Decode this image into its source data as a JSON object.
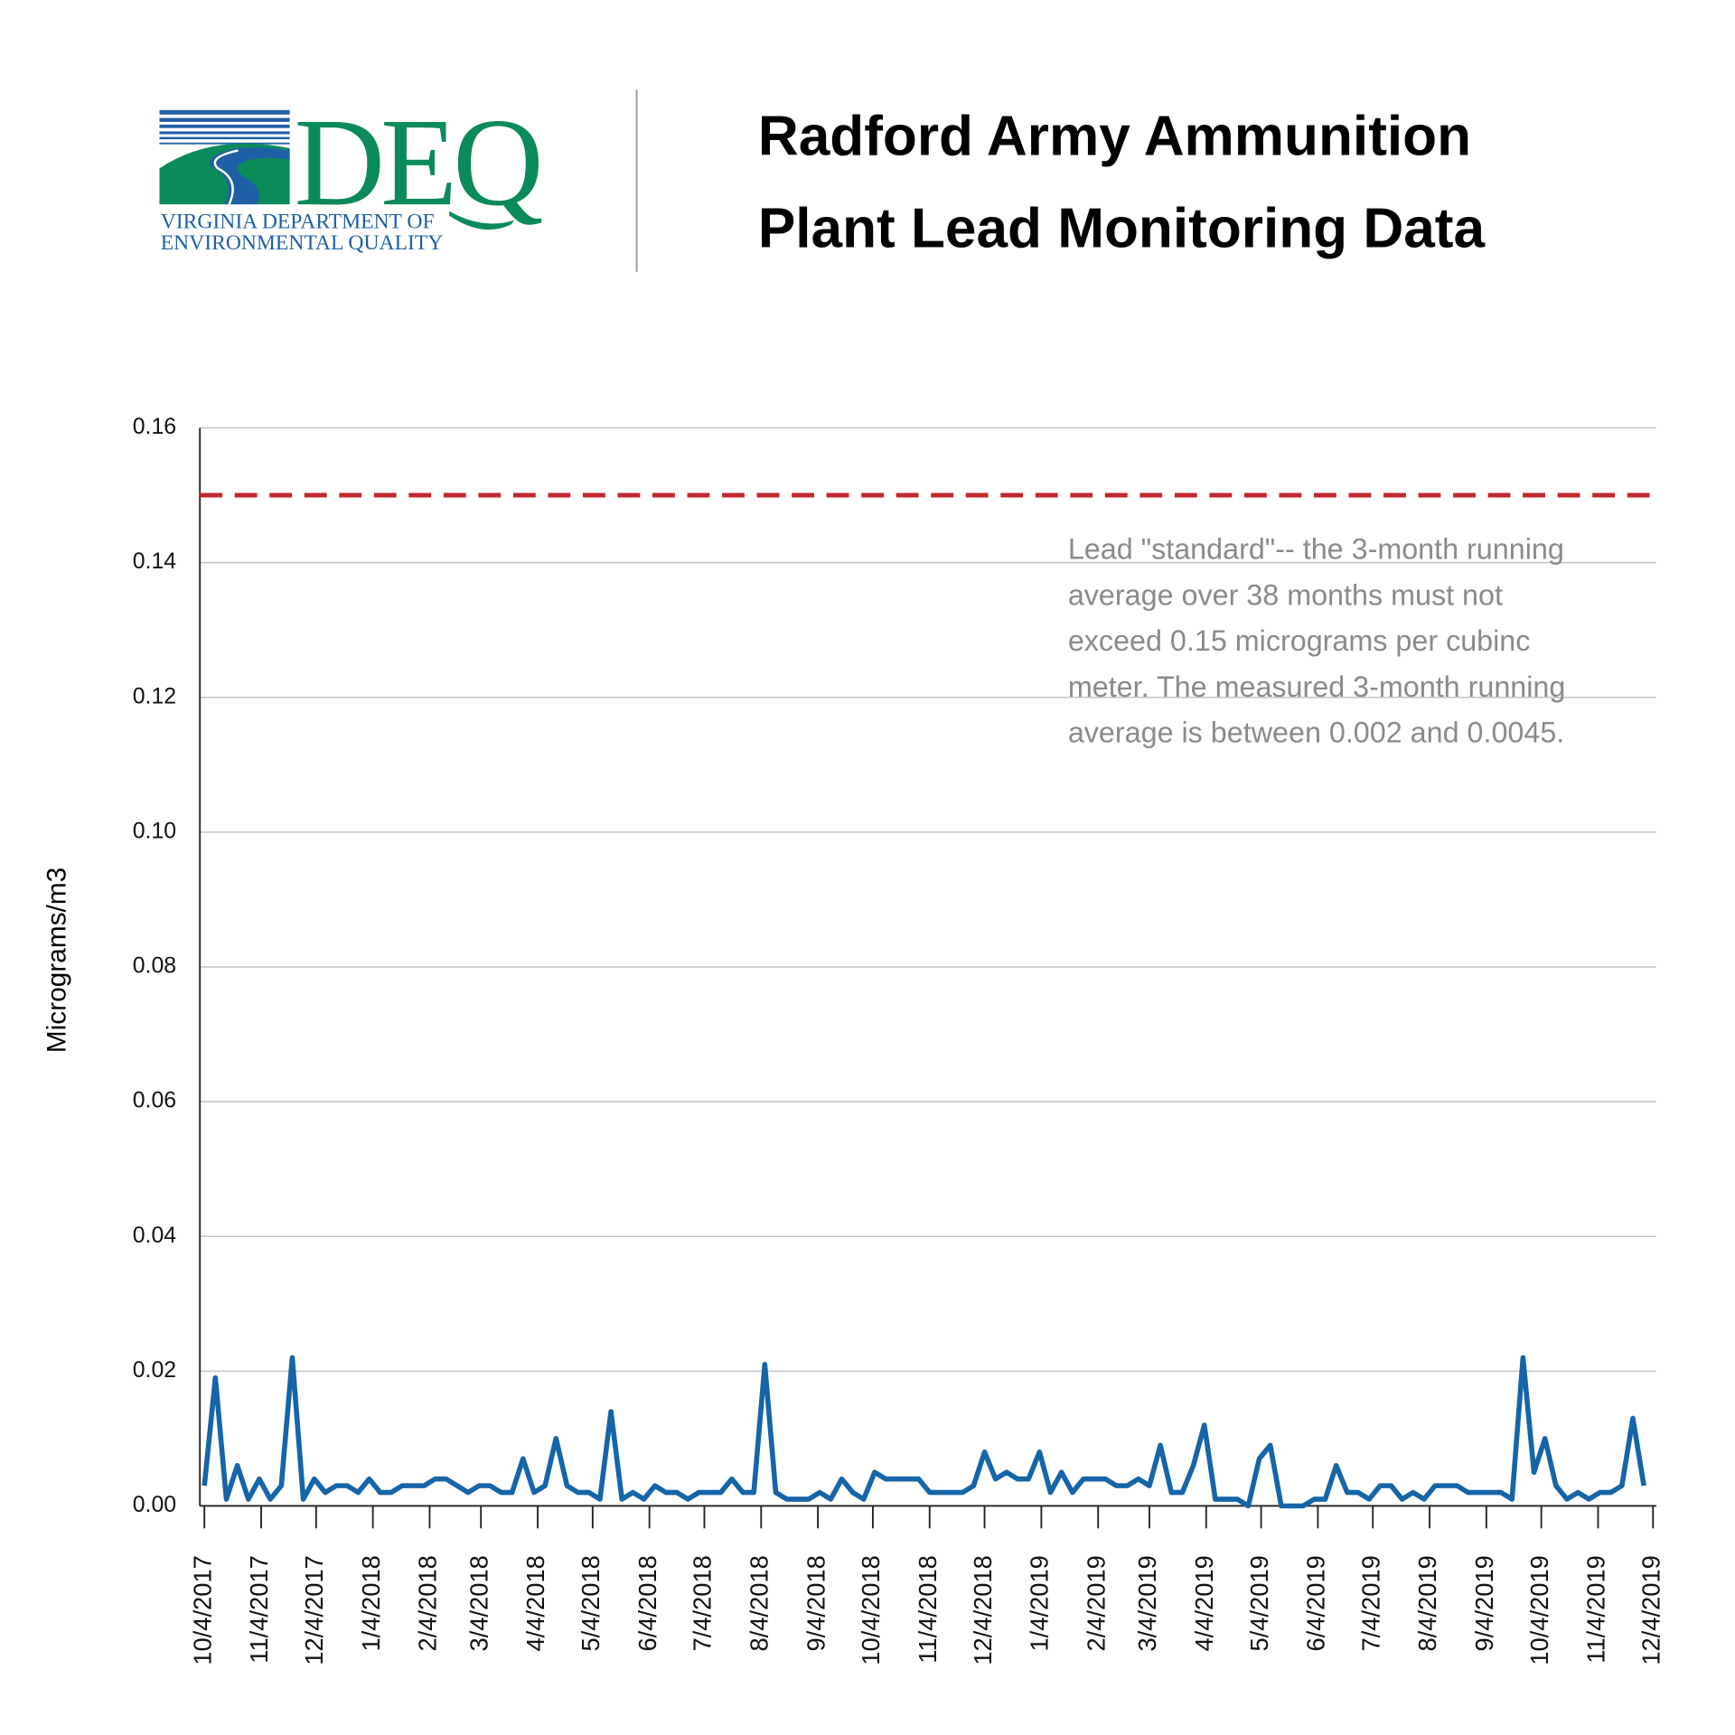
{
  "logo": {
    "acronym": "DEQ",
    "lines": [
      "VIRGINIA DEPARTMENT OF",
      "ENVIRONMENTAL QUALITY"
    ]
  },
  "chart_data": {
    "type": "line",
    "title": [
      "Radford Army Ammunition",
      "Plant Lead Monitoring Data"
    ],
    "y_label": "Micrograms/m3",
    "annotation": [
      "Lead \"standard\"-- the 3-month running",
      "average over 38 months must not",
      "exceed 0.15 micrograms per cubinc",
      "meter. The measured 3-month running",
      "average is between 0.002 and 0.0045."
    ],
    "reference_line": {
      "value": 0.15,
      "color": "#c1272d"
    },
    "grid": true,
    "xlim": [
      "10/4/2017",
      "12/4/2019"
    ],
    "xticks": [
      "10/4/2017",
      "11/4/2017",
      "12/4/2017",
      "1/4/2018",
      "2/4/2018",
      "3/4/2018",
      "4/4/2018",
      "5/4/2018",
      "6/4/2018",
      "7/4/2018",
      "8/4/2018",
      "9/4/2018",
      "10/4/2018",
      "11/4/2018",
      "12/4/2018",
      "1/4/2019",
      "2/4/2019",
      "3/4/2019",
      "4/4/2019",
      "5/4/2019",
      "6/4/2019",
      "7/4/2019",
      "8/4/2019",
      "9/4/2019",
      "10/4/2019",
      "11/4/2019",
      "12/4/2019"
    ],
    "ylim": [
      0,
      0.16
    ],
    "yticks": [
      {
        "value": 0,
        "label": "0.00"
      },
      0.02,
      0.04,
      0.06,
      0.08,
      {
        "value": 0.1,
        "label": "0.10"
      },
      0.12,
      0.14,
      0.16
    ],
    "x": [
      "10/4/2017",
      "10/10/2017",
      "10/16/2017",
      "10/22/2017",
      "10/28/2017",
      "11/3/2017",
      "11/9/2017",
      "11/15/2017",
      "11/21/2017",
      "11/27/2017",
      "12/3/2017",
      "12/9/2017",
      "12/15/2017",
      "12/21/2017",
      "12/27/2017",
      "1/2/2018",
      "1/8/2018",
      "1/14/2018",
      "1/20/2018",
      "1/26/2018",
      "2/1/2018",
      "2/7/2018",
      "2/13/2018",
      "2/19/2018",
      "2/25/2018",
      "3/3/2018",
      "3/9/2018",
      "3/15/2018",
      "3/21/2018",
      "3/27/2018",
      "4/2/2018",
      "4/8/2018",
      "4/14/2018",
      "4/20/2018",
      "4/26/2018",
      "5/2/2018",
      "5/8/2018",
      "5/14/2018",
      "5/20/2018",
      "5/26/2018",
      "6/1/2018",
      "6/7/2018",
      "6/13/2018",
      "6/19/2018",
      "6/25/2018",
      "7/1/2018",
      "7/7/2018",
      "7/13/2018",
      "7/19/2018",
      "7/25/2018",
      "7/31/2018",
      "8/6/2018",
      "8/12/2018",
      "8/18/2018",
      "8/24/2018",
      "8/30/2018",
      "9/5/2018",
      "9/11/2018",
      "9/17/2018",
      "9/23/2018",
      "9/29/2018",
      "10/5/2018",
      "10/11/2018",
      "10/17/2018",
      "10/23/2018",
      "10/29/2018",
      "11/4/2018",
      "11/10/2018",
      "11/16/2018",
      "11/22/2018",
      "11/28/2018",
      "12/4/2018",
      "12/10/2018",
      "12/16/2018",
      "12/22/2018",
      "12/28/2018",
      "1/3/2019",
      "1/9/2019",
      "1/15/2019",
      "1/21/2019",
      "1/27/2019",
      "2/2/2019",
      "2/8/2019",
      "2/14/2019",
      "2/20/2019",
      "2/26/2019",
      "3/4/2019",
      "3/10/2019",
      "3/16/2019",
      "3/22/2019",
      "3/28/2019",
      "4/3/2019",
      "4/9/2019",
      "4/15/2019",
      "4/21/2019",
      "4/27/2019",
      "5/3/2019",
      "5/9/2019",
      "5/15/2019",
      "5/21/2019",
      "5/27/2019",
      "6/2/2019",
      "6/8/2019",
      "6/14/2019",
      "6/20/2019",
      "6/26/2019",
      "7/2/2019",
      "7/8/2019",
      "7/14/2019",
      "7/20/2019",
      "7/26/2019",
      "8/1/2019",
      "8/7/2019",
      "8/13/2019",
      "8/19/2019",
      "8/25/2019",
      "8/31/2019",
      "9/6/2019",
      "9/12/2019",
      "9/18/2019",
      "9/24/2019",
      "9/30/2019",
      "10/6/2019",
      "10/12/2019",
      "10/18/2019",
      "10/24/2019",
      "10/30/2019",
      "11/5/2019",
      "11/11/2019",
      "11/17/2019",
      "11/23/2019",
      "11/29/2019"
    ],
    "series": [
      {
        "name": "Lead",
        "color": "#1565a8",
        "values": [
          0.003,
          0.019,
          0.001,
          0.006,
          0.001,
          0.004,
          0.001,
          0.003,
          0.022,
          0.001,
          0.004,
          0.002,
          0.003,
          0.003,
          0.002,
          0.004,
          0.002,
          0.002,
          0.003,
          0.003,
          0.003,
          0.004,
          0.004,
          0.003,
          0.002,
          0.003,
          0.003,
          0.002,
          0.002,
          0.007,
          0.002,
          0.003,
          0.01,
          0.003,
          0.002,
          0.002,
          0.001,
          0.014,
          0.001,
          0.002,
          0.001,
          0.003,
          0.002,
          0.002,
          0.001,
          0.002,
          0.002,
          0.002,
          0.004,
          0.002,
          0.002,
          0.021,
          0.002,
          0.001,
          0.001,
          0.001,
          0.002,
          0.001,
          0.004,
          0.002,
          0.001,
          0.005,
          0.004,
          0.004,
          0.004,
          0.004,
          0.002,
          0.002,
          0.002,
          0.002,
          0.003,
          0.008,
          0.004,
          0.005,
          0.004,
          0.004,
          0.008,
          0.002,
          0.005,
          0.002,
          0.004,
          0.004,
          0.004,
          0.003,
          0.003,
          0.004,
          0.003,
          0.009,
          0.002,
          0.002,
          0.006,
          0.012,
          0.001,
          0.001,
          0.001,
          0,
          0.007,
          0.009,
          0,
          0,
          0,
          0.001,
          0.001,
          0.006,
          0.002,
          0.002,
          0.001,
          0.003,
          0.003,
          0.001,
          0.002,
          0.001,
          0.003,
          0.003,
          0.003,
          0.002,
          0.002,
          0.002,
          0.002,
          0.001,
          0.022,
          0.005,
          0.01,
          0.003,
          0.001,
          0.002,
          0.001,
          0.002,
          0.002,
          0.003,
          0.013,
          0.003
        ]
      }
    ]
  }
}
